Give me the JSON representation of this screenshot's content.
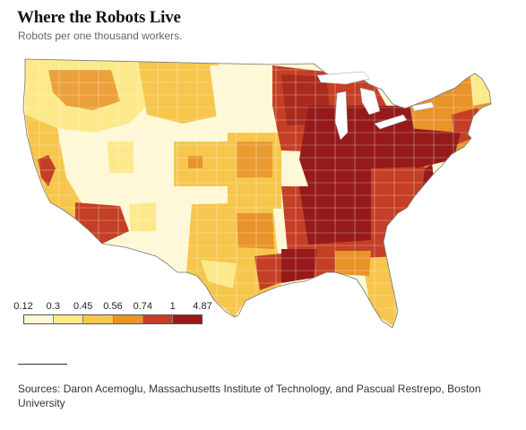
{
  "title": "Where the Robots Live",
  "subtitle": "Robots per one thousand workers.",
  "legend": {
    "ticks": [
      "0.12",
      "0.3",
      "0.45",
      "0.56",
      "0.74",
      "1",
      "4.87"
    ],
    "bins": [
      {
        "range": "0.12–0.3",
        "color": "#fef8d6"
      },
      {
        "range": "0.3–0.45",
        "color": "#fce98a"
      },
      {
        "range": "0.45–0.56",
        "color": "#f6c64d"
      },
      {
        "range": "0.56–0.74",
        "color": "#e9932b"
      },
      {
        "range": "0.74–1",
        "color": "#c43f25"
      },
      {
        "range": "1–4.87",
        "color": "#961a1a"
      }
    ]
  },
  "source": "Sources: Daron Acemoglu, Massachusetts Institute of Technology, and Pascual Restrepo, Boston University",
  "map": {
    "type": "choropleth",
    "region": "contiguous United States",
    "unit": "commuting zones",
    "highest_areas": [
      "Great Lakes / Midwest",
      "Southeast",
      "Gulf Coast (Texas, Louisiana)",
      "Southern California",
      "Northeast"
    ],
    "lowest_areas": [
      "Great Plains",
      "Nevada",
      "Mountain West"
    ]
  }
}
